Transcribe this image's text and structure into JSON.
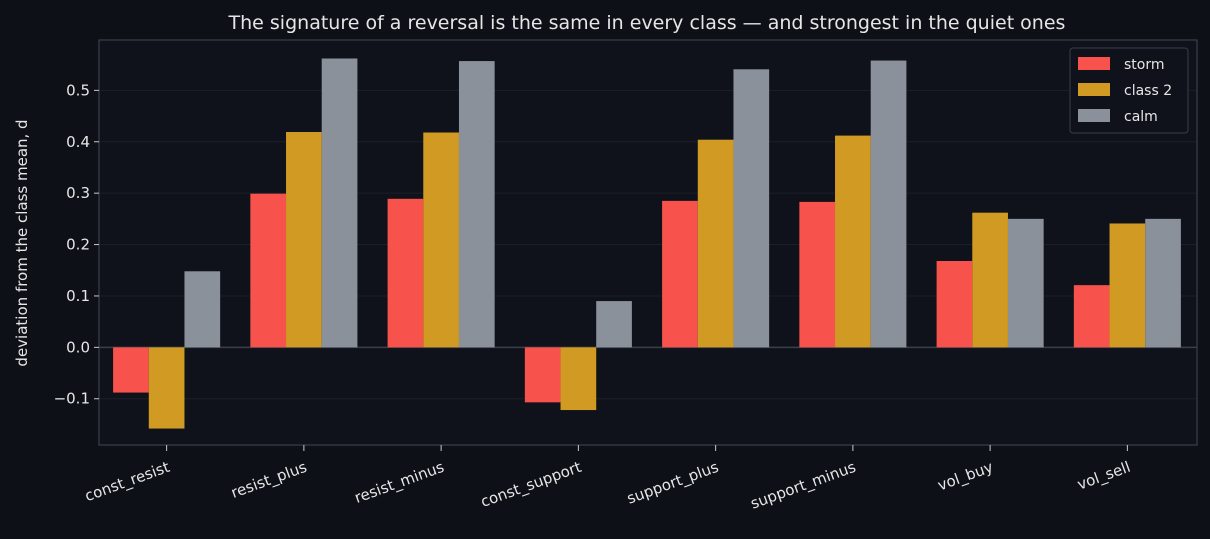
{
  "chart_data": {
    "type": "bar",
    "title": "The signature of a reversal is the same in every class — and strongest in the quiet ones",
    "xlabel": "",
    "ylabel": "deviation from the class mean, d",
    "categories": [
      "const_resist",
      "resist_plus",
      "resist_minus",
      "const_support",
      "support_plus",
      "support_minus",
      "vol_buy",
      "vol_sell"
    ],
    "series": [
      {
        "name": "storm",
        "color": "#f7524b",
        "values": [
          -0.088,
          0.299,
          0.289,
          -0.107,
          0.285,
          0.283,
          0.168,
          0.121
        ]
      },
      {
        "name": "class 2",
        "color": "#d19a22",
        "values": [
          -0.158,
          0.419,
          0.418,
          -0.122,
          0.404,
          0.412,
          0.262,
          0.241
        ]
      },
      {
        "name": "calm",
        "color": "#8b919b",
        "values": [
          0.148,
          0.562,
          0.557,
          0.09,
          0.541,
          0.558,
          0.25,
          0.25
        ]
      }
    ],
    "ylim": [
      -0.19,
      0.598
    ],
    "yticks": [
      "−0.1",
      "0.0",
      "0.1",
      "0.2",
      "0.3",
      "0.4",
      "0.5"
    ],
    "ytick_values": [
      -0.1,
      0.0,
      0.1,
      0.2,
      0.3,
      0.4,
      0.5
    ],
    "grid": true,
    "legend_position": "top-right",
    "background": "#0d1017",
    "axes_background": "#0f121a"
  }
}
